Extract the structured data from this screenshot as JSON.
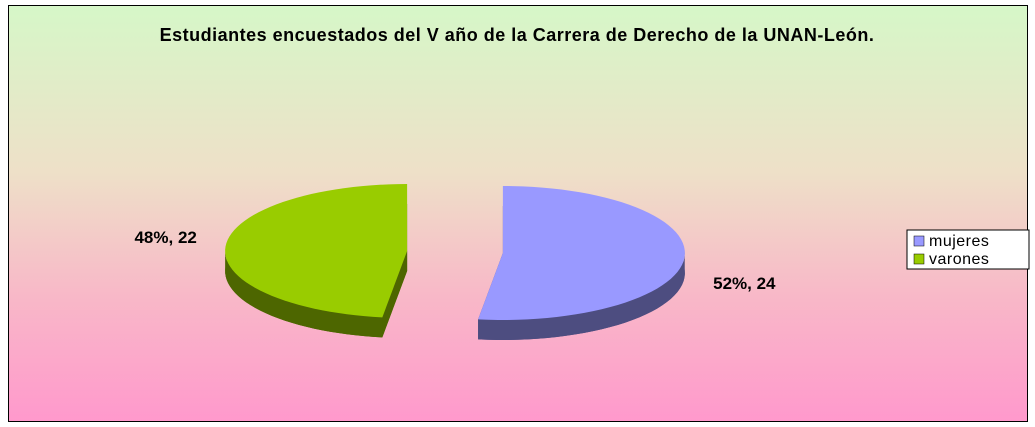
{
  "chart_data": {
    "type": "pie",
    "title": "Estudiantes encuestados del V año de la Carrera de Derecho de la UNAN-León.",
    "categories": [
      "mujeres",
      "varones"
    ],
    "values": [
      24,
      22
    ],
    "value_labels": [
      "52%, 24",
      "48%, 22"
    ],
    "colors": [
      "#9999ff",
      "#99cc00"
    ],
    "legend": "right"
  }
}
